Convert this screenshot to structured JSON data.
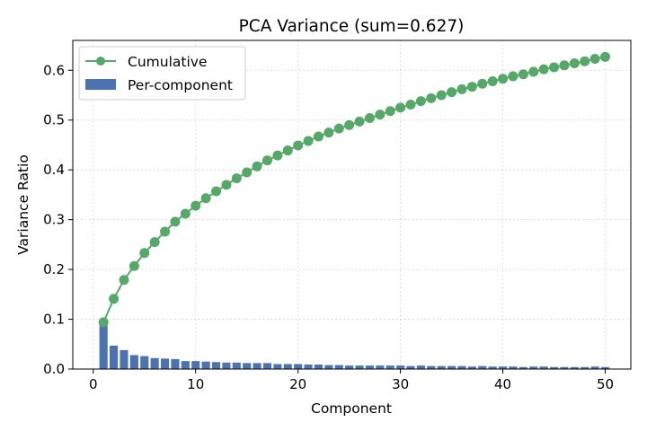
{
  "chart_data": {
    "type": "bar",
    "title": "PCA Variance (sum=0.627)",
    "xlabel": "Component",
    "ylabel": "Variance Ratio",
    "xlim": [
      -2,
      52.5
    ],
    "ylim": [
      0,
      0.66
    ],
    "xticks": [
      0,
      10,
      20,
      30,
      40,
      50
    ],
    "yticks": [
      0.0,
      0.1,
      0.2,
      0.3,
      0.4,
      0.5,
      0.6
    ],
    "grid": true,
    "legend_position": "top-left",
    "x": [
      1,
      2,
      3,
      4,
      5,
      6,
      7,
      8,
      9,
      10,
      11,
      12,
      13,
      14,
      15,
      16,
      17,
      18,
      19,
      20,
      21,
      22,
      23,
      24,
      25,
      26,
      27,
      28,
      29,
      30,
      31,
      32,
      33,
      34,
      35,
      36,
      37,
      38,
      39,
      40,
      41,
      42,
      43,
      44,
      45,
      46,
      47,
      48,
      49,
      50
    ],
    "series": [
      {
        "name": "Cumulative",
        "kind": "line",
        "color": "#55a868",
        "values": [
          0.094,
          0.141,
          0.179,
          0.207,
          0.233,
          0.255,
          0.276,
          0.296,
          0.312,
          0.328,
          0.343,
          0.357,
          0.37,
          0.383,
          0.395,
          0.407,
          0.419,
          0.429,
          0.439,
          0.449,
          0.458,
          0.467,
          0.475,
          0.483,
          0.49,
          0.497,
          0.504,
          0.511,
          0.518,
          0.525,
          0.531,
          0.538,
          0.544,
          0.55,
          0.556,
          0.562,
          0.567,
          0.573,
          0.578,
          0.583,
          0.588,
          0.592,
          0.597,
          0.602,
          0.606,
          0.61,
          0.614,
          0.618,
          0.623,
          0.627
        ]
      },
      {
        "name": "Per-component",
        "kind": "bar",
        "color": "#4c72b0",
        "values": [
          0.094,
          0.047,
          0.038,
          0.028,
          0.026,
          0.022,
          0.021,
          0.02,
          0.016,
          0.016,
          0.015,
          0.014,
          0.013,
          0.013,
          0.012,
          0.012,
          0.012,
          0.01,
          0.01,
          0.01,
          0.009,
          0.009,
          0.008,
          0.008,
          0.007,
          0.007,
          0.007,
          0.007,
          0.007,
          0.007,
          0.006,
          0.007,
          0.006,
          0.006,
          0.006,
          0.006,
          0.005,
          0.006,
          0.005,
          0.005,
          0.005,
          0.004,
          0.005,
          0.005,
          0.004,
          0.004,
          0.004,
          0.004,
          0.005,
          0.004
        ]
      }
    ]
  }
}
